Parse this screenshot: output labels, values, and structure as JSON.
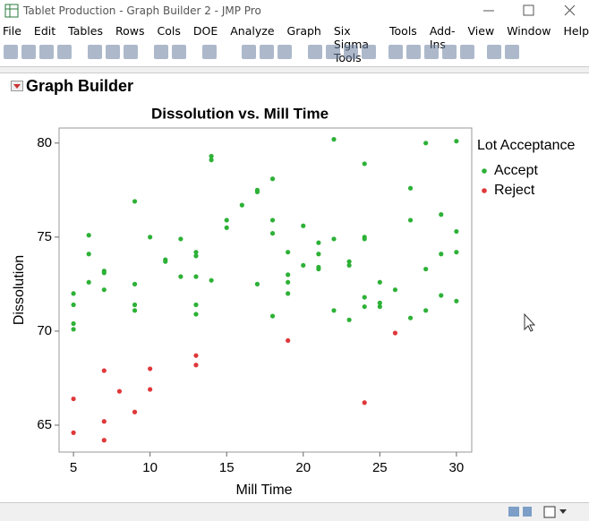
{
  "window": {
    "title": "Tablet Production - Graph Builder 2 - JMP Pro"
  },
  "menu": [
    "File",
    "Edit",
    "Tables",
    "Rows",
    "Cols",
    "DOE",
    "Analyze",
    "Graph",
    "Six Sigma Tools",
    "Tools",
    "Add-Ins",
    "View",
    "Window",
    "Help"
  ],
  "panel_title": "Graph Builder",
  "chart_data": {
    "type": "scatter",
    "title": "Dissolution vs. Mill Time",
    "x_label": "Mill Time",
    "y_label": "Dissolution",
    "legend_title": "Lot Acceptance",
    "legend": "right",
    "xlim": [
      4.06,
      31
    ],
    "ylim": [
      63.57,
      80.8
    ],
    "xticks": [
      5,
      10,
      15,
      20,
      25,
      30
    ],
    "yticks": [
      65,
      70,
      75,
      80
    ],
    "grid": false,
    "series": [
      {
        "name": "Accept",
        "color": "#2db136",
        "x": [
          5,
          5,
          5,
          5,
          6,
          6,
          6,
          7,
          7,
          7,
          9,
          9,
          9,
          9,
          10,
          11,
          11,
          12,
          12,
          13,
          13,
          13,
          13,
          13,
          14,
          14,
          14,
          15,
          15,
          16,
          17,
          17,
          17,
          18,
          18,
          18,
          18,
          19,
          19,
          19,
          19,
          20,
          20,
          21,
          21,
          21,
          21,
          22,
          22,
          22,
          23,
          23,
          23,
          24,
          24,
          24,
          24,
          24,
          25,
          25,
          25,
          26,
          27,
          27,
          27,
          28,
          28,
          28,
          29,
          29,
          29,
          30,
          30,
          30,
          30
        ],
        "values": [
          72.0,
          71.4,
          70.4,
          70.1,
          75.1,
          74.1,
          72.6,
          73.2,
          73.1,
          72.2,
          76.9,
          72.5,
          71.4,
          71.1,
          75.0,
          73.8,
          73.7,
          74.9,
          72.9,
          74.2,
          74.0,
          72.9,
          71.4,
          70.9,
          79.3,
          79.1,
          72.7,
          75.9,
          75.5,
          76.7,
          77.5,
          77.4,
          72.5,
          78.1,
          75.9,
          75.2,
          70.8,
          74.2,
          73.0,
          72.6,
          72.0,
          75.6,
          73.5,
          74.7,
          74.1,
          73.4,
          73.3,
          80.2,
          74.9,
          71.1,
          73.7,
          73.5,
          70.6,
          78.9,
          75.0,
          74.9,
          71.8,
          71.3,
          72.6,
          71.5,
          71.3,
          72.2,
          77.6,
          75.9,
          70.7,
          80.0,
          73.3,
          71.1,
          76.2,
          74.1,
          71.9,
          80.1,
          75.3,
          74.2,
          71.6
        ]
      },
      {
        "name": "Reject",
        "color": "#e0383a",
        "x": [
          5,
          5,
          7,
          7,
          7,
          8,
          9,
          10,
          10,
          13,
          13,
          19,
          24,
          26
        ],
        "values": [
          66.4,
          64.6,
          67.9,
          65.2,
          64.2,
          66.8,
          65.7,
          68.0,
          66.9,
          68.7,
          68.2,
          69.5,
          66.2,
          69.9
        ]
      }
    ]
  }
}
